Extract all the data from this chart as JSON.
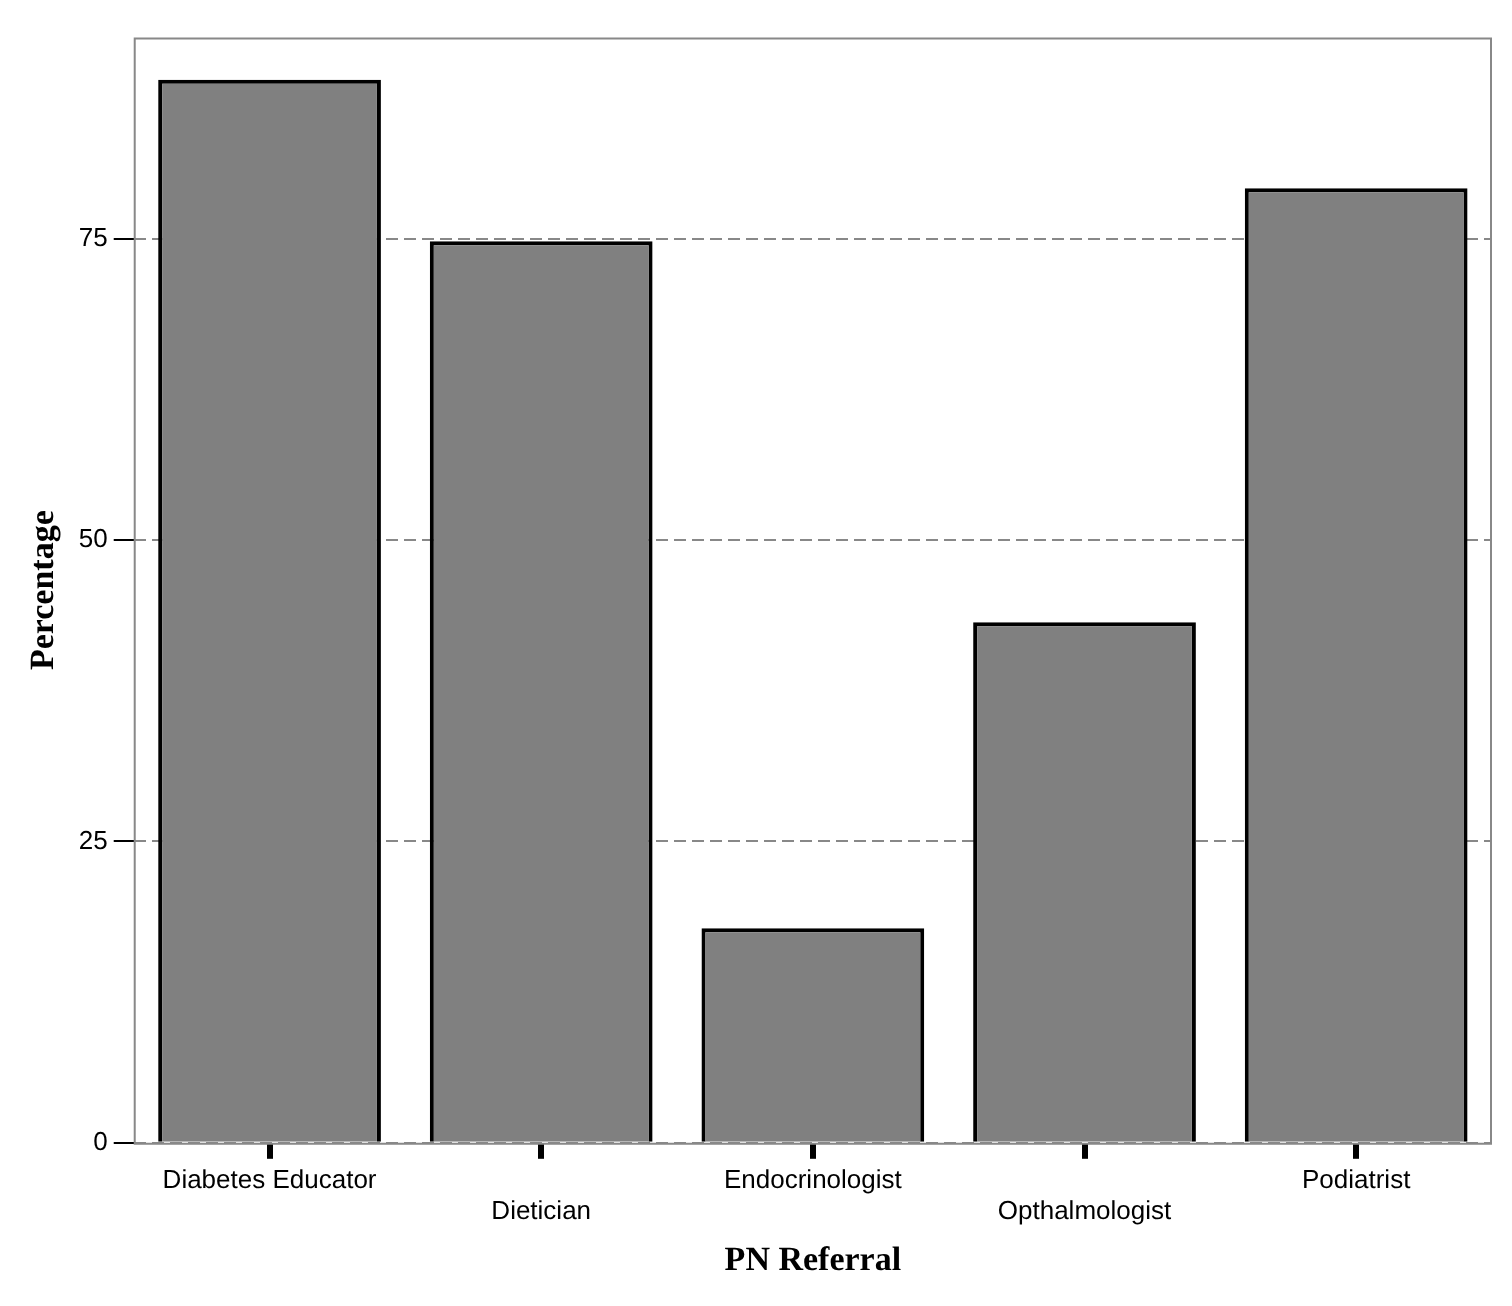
{
  "chart_data": {
    "type": "bar",
    "xlabel": "PN Referral",
    "ylabel": "Percentage",
    "categories": [
      "Diabetes Educator",
      "Dietician",
      "Endocrinologist",
      "Opthalmologist",
      "Podiatrist"
    ],
    "values": [
      88.2,
      74.8,
      17.8,
      43.2,
      79.2
    ],
    "color": "#808080",
    "ylim": [
      0,
      91.7
    ],
    "yticks": [
      0,
      25,
      50,
      75
    ],
    "grid": "y",
    "legend": false
  }
}
